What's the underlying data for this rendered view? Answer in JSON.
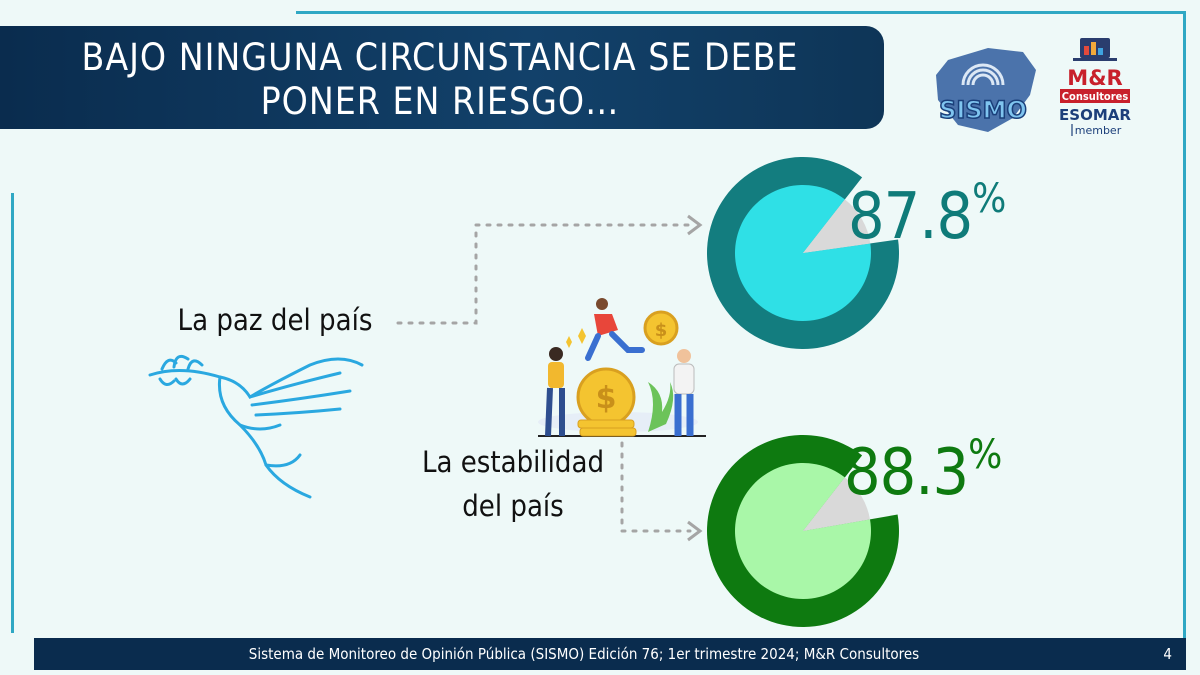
{
  "header": {
    "title": "BAJO NINGUNA CIRCUNSTANCIA SE DEBE PONER EN RIESGO…"
  },
  "logos": {
    "sismo": "SISMO",
    "mr_brand": "M&R",
    "mr_sub": "Consultores",
    "esomar": "ESOMAR",
    "member": "member"
  },
  "footer": {
    "source": "Sistema de Monitoreo de Opinión Pública (SISMO) Edición 76; 1er trimestre 2024; M&R Consultores",
    "page": "4"
  },
  "colors": {
    "peace_ring": "#137d7f",
    "peace_fill": "#2fe0e6",
    "peace_text": "#0f7b79",
    "stability_ring": "#0e7a10",
    "stability_fill": "#a9f7a8",
    "stability_text": "#0e7a10",
    "accent": "#2fa8c4"
  },
  "chart_data": {
    "type": "pie",
    "items": [
      {
        "label": "La paz del país",
        "value": 87.8,
        "display": "87.8",
        "unit": "%"
      },
      {
        "label": "La estabilidad del país",
        "value": 88.3,
        "display": "88.3",
        "unit": "%"
      }
    ]
  }
}
